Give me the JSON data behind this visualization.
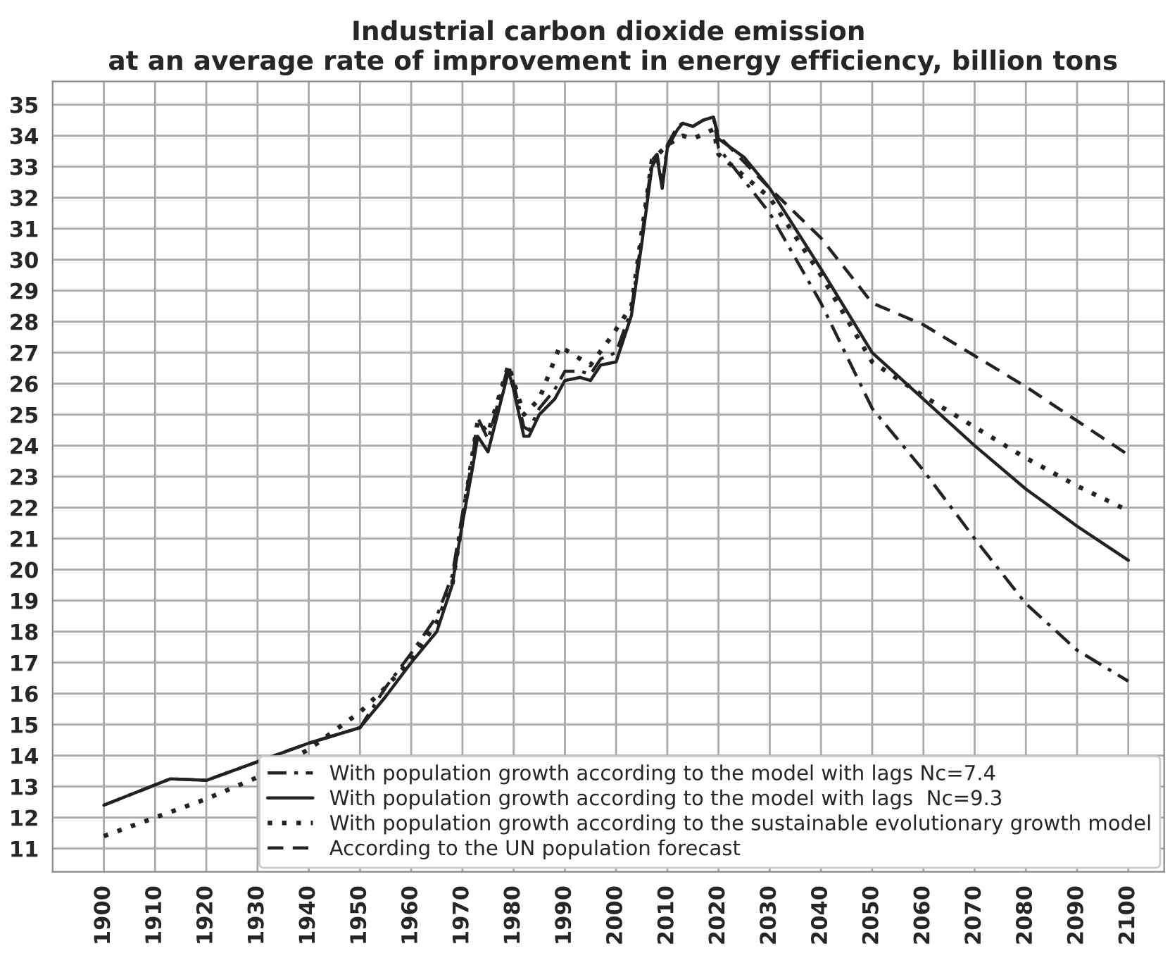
{
  "chart_data": {
    "type": "line",
    "title": "Industrial carbon dioxide emission\n at an average rate of improvement in energy efficiency, billion tons",
    "xlim": [
      1890,
      2107
    ],
    "ylim": [
      10.25,
      35.75
    ],
    "xticks": [
      1900,
      1910,
      1920,
      1930,
      1940,
      1950,
      1960,
      1970,
      1980,
      1990,
      2000,
      2010,
      2020,
      2030,
      2040,
      2050,
      2060,
      2070,
      2080,
      2090,
      2100
    ],
    "yticks": [
      11,
      12,
      13,
      14,
      15,
      16,
      17,
      18,
      19,
      20,
      21,
      22,
      23,
      24,
      25,
      26,
      27,
      28,
      29,
      30,
      31,
      32,
      33,
      34,
      35
    ],
    "grid": true,
    "legend": "bottom right",
    "marker": "none",
    "series": [
      {
        "name": "With population growth according to the model with lags Nc=7.4",
        "color": "#222222",
        "line_style": "dashdot",
        "x": [
          1900,
          1913,
          1920,
          1930,
          1940,
          1950,
          1955,
          1960,
          1965,
          1968,
          1970,
          1972,
          1973,
          1975,
          1979,
          1980,
          1982,
          1983,
          1985,
          1988,
          1990,
          1993,
          1995,
          1997,
          2000,
          2003,
          2005,
          2007,
          2008,
          2009,
          2010,
          2012,
          2013,
          2015,
          2017,
          2019,
          2020,
          2030,
          2040,
          2050,
          2060,
          2070,
          2080,
          2090,
          2100
        ],
        "values": [
          12.4,
          13.25,
          13.2,
          13.8,
          14.4,
          14.9,
          16.2,
          17.3,
          18.5,
          19.8,
          21.8,
          23.6,
          24.9,
          24.2,
          26.6,
          26.0,
          24.6,
          24.5,
          25.2,
          25.8,
          26.4,
          26.4,
          26.3,
          26.8,
          27.0,
          28.4,
          30.7,
          33.2,
          33.4,
          32.4,
          33.7,
          34.3,
          34.4,
          34.3,
          34.5,
          34.6,
          33.6,
          31.5,
          28.6,
          25.2,
          23.2,
          21.0,
          18.9,
          17.4,
          16.4
        ]
      },
      {
        "name": "With population growth according to the model with lags  Nc=9.3",
        "color": "#222222",
        "line_style": "solid",
        "x": [
          1900,
          1913,
          1920,
          1930,
          1940,
          1950,
          1955,
          1960,
          1965,
          1968,
          1970,
          1972,
          1973,
          1975,
          1979,
          1980,
          1982,
          1983,
          1985,
          1988,
          1990,
          1993,
          1995,
          1997,
          2000,
          2003,
          2005,
          2007,
          2008,
          2009,
          2010,
          2012,
          2013,
          2015,
          2017,
          2019,
          2020,
          2025,
          2030,
          2040,
          2050,
          2060,
          2070,
          2080,
          2090,
          2100
        ],
        "values": [
          12.4,
          13.25,
          13.2,
          13.8,
          14.4,
          14.9,
          15.9,
          17.0,
          18.0,
          19.5,
          21.5,
          23.3,
          24.3,
          23.8,
          26.4,
          25.8,
          24.3,
          24.3,
          25.0,
          25.5,
          26.1,
          26.2,
          26.1,
          26.6,
          26.7,
          28.2,
          30.5,
          33.0,
          33.3,
          32.3,
          33.6,
          34.2,
          34.4,
          34.3,
          34.5,
          34.6,
          33.9,
          33.3,
          32.3,
          29.7,
          27.0,
          25.5,
          24.0,
          22.6,
          21.4,
          20.3
        ]
      },
      {
        "name": "With population growth according to the sustainable evolutionary growth model",
        "color": "#222222",
        "line_style": "dotted",
        "x": [
          1900,
          1910,
          1920,
          1930,
          1940,
          1945,
          1950,
          1955,
          1960,
          1965,
          1968,
          1970,
          1973,
          1975,
          1979,
          1982,
          1985,
          1989,
          1993,
          1995,
          1999,
          2003,
          2007,
          2010,
          2013,
          2015,
          2019,
          2020,
          2030,
          2040,
          2050,
          2060,
          2070,
          2080,
          2090,
          2100
        ],
        "values": [
          11.4,
          12.0,
          12.6,
          13.3,
          14.2,
          14.8,
          15.4,
          16.2,
          17.1,
          18.3,
          19.5,
          21.6,
          24.8,
          24.4,
          26.6,
          25.0,
          25.5,
          27.2,
          26.8,
          26.6,
          27.5,
          28.5,
          33.2,
          33.7,
          34.0,
          33.9,
          34.2,
          33.4,
          32.0,
          29.5,
          26.7,
          25.6,
          24.6,
          23.6,
          22.7,
          21.9
        ]
      },
      {
        "name": "According to the UN population forecast",
        "color": "#222222",
        "line_style": "dashed",
        "x": [
          2019,
          2020,
          2030,
          2040,
          2050,
          2060,
          2070,
          2080,
          2090,
          2100
        ],
        "values": [
          34.6,
          34.0,
          32.3,
          30.7,
          28.6,
          27.9,
          26.9,
          25.9,
          24.8,
          23.7
        ]
      }
    ]
  }
}
